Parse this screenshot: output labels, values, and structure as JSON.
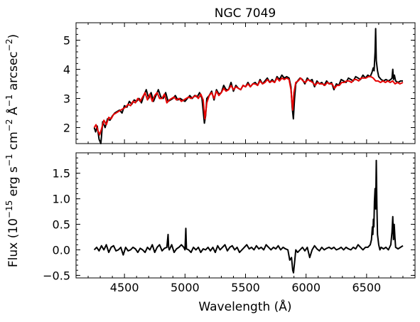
{
  "chart_data": {
    "type": "line",
    "title": "NGC 7049",
    "xlabel": "Wavelength (Å)",
    "ylabel": "Flux (10^-15 erg s^-1 cm^-2 Å^-1 arcsec^-2)",
    "xlim": [
      4100,
      6900
    ],
    "xticks": [
      4500,
      5000,
      5500,
      6000,
      6500
    ],
    "colors": {
      "observed": "#000000",
      "model": "#e60000",
      "residual": "#000000"
    },
    "panels": [
      {
        "ylim": [
          1.45,
          5.6
        ],
        "yticks": [
          2,
          3,
          4,
          5
        ],
        "series": [
          {
            "key": "observed",
            "x": [
              4250,
              4262,
              4275,
              4290,
              4305,
              4310,
              4320,
              4340,
              4360,
              4380,
              4400,
              4420,
              4440,
              4460,
              4480,
              4500,
              4520,
              4540,
              4560,
              4580,
              4600,
              4620,
              4640,
              4660,
              4680,
              4700,
              4720,
              4740,
              4760,
              4780,
              4800,
              4820,
              4840,
              4860,
              4880,
              4900,
              4920,
              4940,
              4960,
              4980,
              5000,
              5020,
              5040,
              5060,
              5080,
              5100,
              5120,
              5140,
              5160,
              5170,
              5180,
              5200,
              5220,
              5240,
              5260,
              5280,
              5300,
              5320,
              5340,
              5360,
              5380,
              5400,
              5420,
              5440,
              5460,
              5480,
              5500,
              5520,
              5540,
              5560,
              5580,
              5600,
              5620,
              5640,
              5660,
              5680,
              5700,
              5720,
              5740,
              5760,
              5780,
              5800,
              5820,
              5840,
              5860,
              5875,
              5885,
              5895,
              5905,
              5915,
              5930,
              5950,
              5970,
              5990,
              6010,
              6030,
              6050,
              6070,
              6090,
              6110,
              6130,
              6150,
              6170,
              6190,
              6210,
              6230,
              6250,
              6270,
              6290,
              6310,
              6330,
              6350,
              6370,
              6390,
              6410,
              6430,
              6450,
              6470,
              6490,
              6510,
              6530,
              6545,
              6555,
              6562,
              6570,
              6575,
              6580,
              6590,
              6600,
              6620,
              6640,
              6660,
              6680,
              6700,
              6710,
              6716,
              6722,
              6730,
              6740,
              6760,
              6780,
              6800
            ],
            "y": [
              2.0,
              1.85,
              2.05,
              1.6,
              1.45,
              1.7,
              2.2,
              2.0,
              2.3,
              2.25,
              2.4,
              2.5,
              2.55,
              2.6,
              2.5,
              2.75,
              2.7,
              2.9,
              2.8,
              2.95,
              2.9,
              3.0,
              2.85,
              3.1,
              3.3,
              3.0,
              3.2,
              2.9,
              3.1,
              3.3,
              3.05,
              3.0,
              3.2,
              2.9,
              2.95,
              3.0,
              3.1,
              2.95,
              3.0,
              2.95,
              2.9,
              3.0,
              3.1,
              3.0,
              3.1,
              3.05,
              3.2,
              3.0,
              2.15,
              2.4,
              3.0,
              3.1,
              3.25,
              2.95,
              3.3,
              3.15,
              3.2,
              3.45,
              3.3,
              3.3,
              3.55,
              3.25,
              3.45,
              3.35,
              3.3,
              3.45,
              3.4,
              3.55,
              3.4,
              3.5,
              3.55,
              3.45,
              3.65,
              3.5,
              3.6,
              3.7,
              3.55,
              3.65,
              3.55,
              3.75,
              3.65,
              3.8,
              3.7,
              3.75,
              3.7,
              3.4,
              2.7,
              2.3,
              3.0,
              3.5,
              3.6,
              3.7,
              3.65,
              3.5,
              3.7,
              3.6,
              3.65,
              3.4,
              3.6,
              3.5,
              3.55,
              3.45,
              3.6,
              3.5,
              3.55,
              3.3,
              3.5,
              3.45,
              3.65,
              3.6,
              3.55,
              3.7,
              3.65,
              3.6,
              3.75,
              3.7,
              3.65,
              3.8,
              3.7,
              3.8,
              3.75,
              3.9,
              4.05,
              3.95,
              4.6,
              5.4,
              4.3,
              3.95,
              3.75,
              3.65,
              3.6,
              3.65,
              3.6,
              3.65,
              3.7,
              4.0,
              3.65,
              3.8,
              3.6,
              3.55,
              3.6,
              3.6
            ]
          },
          {
            "key": "model",
            "x": [
              4250,
              4265,
              4280,
              4295,
              4310,
              4330,
              4350,
              4370,
              4390,
              4410,
              4430,
              4450,
              4470,
              4490,
              4510,
              4530,
              4550,
              4570,
              4590,
              4610,
              4630,
              4650,
              4670,
              4690,
              4710,
              4730,
              4750,
              4770,
              4790,
              4810,
              4830,
              4850,
              4870,
              4890,
              4910,
              4930,
              4950,
              4970,
              4990,
              5010,
              5030,
              5050,
              5070,
              5090,
              5110,
              5130,
              5150,
              5165,
              5180,
              5200,
              5220,
              5240,
              5260,
              5280,
              5300,
              5320,
              5340,
              5360,
              5380,
              5400,
              5420,
              5440,
              5460,
              5480,
              5500,
              5520,
              5540,
              5560,
              5580,
              5600,
              5620,
              5640,
              5660,
              5680,
              5700,
              5720,
              5740,
              5760,
              5780,
              5800,
              5820,
              5840,
              5860,
              5875,
              5890,
              5900,
              5915,
              5935,
              5955,
              5975,
              5995,
              6015,
              6035,
              6055,
              6075,
              6095,
              6115,
              6135,
              6155,
              6175,
              6195,
              6215,
              6235,
              6255,
              6275,
              6295,
              6315,
              6335,
              6355,
              6375,
              6395,
              6415,
              6435,
              6455,
              6475,
              6495,
              6515,
              6535,
              6555,
              6575,
              6595,
              6615,
              6635,
              6655,
              6675,
              6695,
              6715,
              6735,
              6755,
              6775,
              6800
            ],
            "y": [
              2.0,
              2.1,
              1.9,
              1.75,
              1.95,
              2.25,
              2.1,
              2.35,
              2.3,
              2.45,
              2.5,
              2.55,
              2.6,
              2.65,
              2.7,
              2.8,
              2.75,
              2.9,
              2.85,
              3.0,
              2.9,
              3.05,
              3.2,
              2.95,
              3.15,
              2.9,
              3.1,
              3.2,
              3.0,
              3.0,
              3.15,
              2.85,
              2.95,
              3.0,
              3.05,
              2.95,
              3.0,
              2.9,
              2.95,
              3.0,
              3.05,
              3.0,
              3.05,
              3.1,
              3.0,
              3.15,
              2.95,
              2.3,
              2.85,
              3.1,
              3.2,
              3.0,
              3.25,
              3.1,
              3.2,
              3.35,
              3.25,
              3.3,
              3.45,
              3.3,
              3.4,
              3.35,
              3.3,
              3.45,
              3.4,
              3.5,
              3.4,
              3.5,
              3.5,
              3.45,
              3.6,
              3.5,
              3.55,
              3.65,
              3.55,
              3.6,
              3.55,
              3.7,
              3.6,
              3.7,
              3.65,
              3.7,
              3.65,
              3.3,
              2.6,
              3.2,
              3.55,
              3.6,
              3.7,
              3.6,
              3.55,
              3.65,
              3.6,
              3.55,
              3.45,
              3.55,
              3.5,
              3.5,
              3.45,
              3.55,
              3.5,
              3.5,
              3.35,
              3.45,
              3.45,
              3.55,
              3.55,
              3.6,
              3.6,
              3.55,
              3.65,
              3.65,
              3.6,
              3.7,
              3.7,
              3.7,
              3.75,
              3.75,
              3.7,
              3.6,
              3.6,
              3.55,
              3.6,
              3.55,
              3.6,
              3.55,
              3.6,
              3.5,
              3.55,
              3.5,
              3.55
            ]
          }
        ]
      },
      {
        "ylim": [
          -0.55,
          1.9
        ],
        "yticks": [
          -0.5,
          0.0,
          0.5,
          1.0,
          1.5
        ],
        "series": [
          {
            "key": "residual",
            "x": [
              4250,
              4270,
              4290,
              4310,
              4330,
              4350,
              4370,
              4390,
              4410,
              4430,
              4450,
              4470,
              4490,
              4510,
              4530,
              4550,
              4570,
              4590,
              4610,
              4630,
              4650,
              4670,
              4690,
              4710,
              4730,
              4750,
              4770,
              4790,
              4810,
              4830,
              4850,
              4860,
              4865,
              4870,
              4890,
              4910,
              4930,
              4950,
              4970,
              4990,
              5000,
              5007,
              5012,
              5030,
              5050,
              5070,
              5090,
              5110,
              5130,
              5150,
              5170,
              5190,
              5210,
              5230,
              5250,
              5270,
              5290,
              5310,
              5330,
              5350,
              5370,
              5390,
              5410,
              5430,
              5450,
              5470,
              5490,
              5510,
              5530,
              5550,
              5570,
              5590,
              5610,
              5630,
              5650,
              5670,
              5690,
              5710,
              5730,
              5750,
              5770,
              5790,
              5810,
              5830,
              5850,
              5865,
              5880,
              5890,
              5896,
              5905,
              5915,
              5930,
              5950,
              5970,
              5990,
              6010,
              6030,
              6050,
              6070,
              6090,
              6110,
              6130,
              6150,
              6170,
              6190,
              6210,
              6230,
              6250,
              6270,
              6290,
              6310,
              6330,
              6350,
              6370,
              6390,
              6410,
              6430,
              6450,
              6470,
              6490,
              6510,
              6530,
              6540,
              6548,
              6552,
              6556,
              6560,
              6565,
              6570,
              6575,
              6580,
              6585,
              6590,
              6600,
              6610,
              6620,
              6640,
              6660,
              6680,
              6700,
              6710,
              6716,
              6722,
              6728,
              6734,
              6740,
              6760,
              6780,
              6800
            ],
            "y": [
              0.0,
              0.05,
              -0.02,
              0.08,
              0.0,
              0.1,
              -0.05,
              0.05,
              0.08,
              -0.02,
              0.0,
              0.05,
              -0.1,
              0.05,
              -0.02,
              0.0,
              0.05,
              0.02,
              -0.05,
              0.03,
              0.0,
              -0.05,
              0.05,
              0.0,
              0.1,
              -0.05,
              0.05,
              0.1,
              -0.02,
              0.03,
              0.05,
              0.3,
              0.05,
              0.0,
              0.1,
              -0.05,
              0.02,
              0.05,
              0.1,
              0.05,
              0.0,
              0.42,
              0.02,
              0.0,
              -0.05,
              0.05,
              0.0,
              0.05,
              -0.05,
              0.02,
              0.0,
              0.05,
              -0.02,
              0.05,
              -0.05,
              0.08,
              0.0,
              0.05,
              0.1,
              -0.02,
              0.05,
              0.08,
              0.0,
              0.05,
              -0.05,
              0.0,
              0.05,
              0.1,
              0.02,
              0.05,
              0.0,
              0.08,
              0.02,
              0.05,
              0.0,
              0.1,
              0.05,
              0.0,
              0.05,
              0.02,
              0.08,
              0.0,
              0.05,
              0.02,
              0.0,
              -0.2,
              -0.15,
              -0.4,
              -0.45,
              -0.25,
              0.0,
              -0.05,
              0.0,
              0.05,
              -0.02,
              0.05,
              -0.15,
              0.0,
              0.08,
              0.02,
              -0.02,
              0.05,
              0.0,
              0.03,
              0.05,
              0.02,
              0.05,
              0.0,
              0.02,
              0.05,
              0.0,
              0.05,
              0.02,
              0.0,
              0.05,
              0.02,
              0.1,
              0.05,
              0.0,
              0.05,
              0.05,
              0.1,
              0.2,
              0.45,
              0.3,
              0.6,
              0.45,
              0.95,
              1.2,
              0.8,
              1.75,
              0.9,
              0.3,
              0.1,
              0.0,
              0.05,
              0.02,
              0.05,
              0.0,
              0.1,
              0.35,
              0.65,
              0.2,
              0.5,
              0.25,
              0.05,
              0.02,
              0.05,
              0.08
            ]
          }
        ]
      }
    ]
  }
}
